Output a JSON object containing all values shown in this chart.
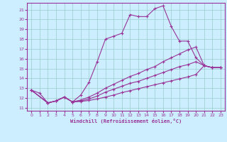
{
  "xlabel": "Windchill (Refroidissement éolien,°C)",
  "bg_color": "#cceeff",
  "line_color": "#993399",
  "grid_color": "#99cccc",
  "xlim": [
    -0.5,
    23.5
  ],
  "ylim": [
    10.7,
    21.7
  ],
  "xticks": [
    0,
    1,
    2,
    3,
    4,
    5,
    6,
    7,
    8,
    9,
    10,
    11,
    12,
    13,
    14,
    15,
    16,
    17,
    18,
    19,
    20,
    21,
    22,
    23
  ],
  "yticks": [
    11,
    12,
    13,
    14,
    15,
    16,
    17,
    18,
    19,
    20,
    21
  ],
  "s1_x": [
    0,
    1,
    2,
    3,
    4,
    5,
    6,
    7,
    8,
    9,
    10,
    11,
    12,
    13,
    14,
    15,
    16,
    17,
    18,
    19,
    20,
    21,
    22,
    23
  ],
  "s1_y": [
    12.8,
    12.5,
    11.5,
    11.7,
    12.1,
    11.6,
    12.3,
    13.6,
    15.7,
    18.0,
    18.3,
    18.6,
    20.5,
    20.3,
    20.3,
    21.1,
    21.4,
    19.3,
    17.8,
    17.8,
    16.1,
    15.3,
    15.1,
    15.1
  ],
  "s2_x": [
    0,
    2,
    3,
    4,
    5,
    6,
    7,
    8,
    9,
    10,
    11,
    12,
    13,
    14,
    15,
    16,
    17,
    18,
    19,
    20,
    21,
    22,
    23
  ],
  "s2_y": [
    12.8,
    11.5,
    11.7,
    12.1,
    11.6,
    11.8,
    12.1,
    12.5,
    13.0,
    13.4,
    13.8,
    14.2,
    14.5,
    14.9,
    15.2,
    15.7,
    16.1,
    16.5,
    16.9,
    17.2,
    15.3,
    15.1,
    15.1
  ],
  "s3_x": [
    0,
    2,
    3,
    4,
    5,
    6,
    7,
    8,
    9,
    10,
    11,
    12,
    13,
    14,
    15,
    16,
    17,
    18,
    19,
    20,
    21,
    22,
    23
  ],
  "s3_y": [
    12.8,
    11.5,
    11.7,
    12.1,
    11.6,
    11.7,
    11.9,
    12.2,
    12.6,
    12.9,
    13.2,
    13.5,
    13.7,
    14.0,
    14.3,
    14.6,
    14.9,
    15.2,
    15.4,
    15.7,
    15.3,
    15.1,
    15.1
  ],
  "s4_x": [
    0,
    2,
    3,
    4,
    5,
    6,
    7,
    8,
    9,
    10,
    11,
    12,
    13,
    14,
    15,
    16,
    17,
    18,
    19,
    20,
    21,
    22,
    23
  ],
  "s4_y": [
    12.8,
    11.5,
    11.7,
    12.1,
    11.6,
    11.65,
    11.75,
    11.9,
    12.1,
    12.3,
    12.55,
    12.75,
    12.95,
    13.15,
    13.35,
    13.55,
    13.75,
    13.95,
    14.15,
    14.4,
    15.3,
    15.1,
    15.1
  ]
}
